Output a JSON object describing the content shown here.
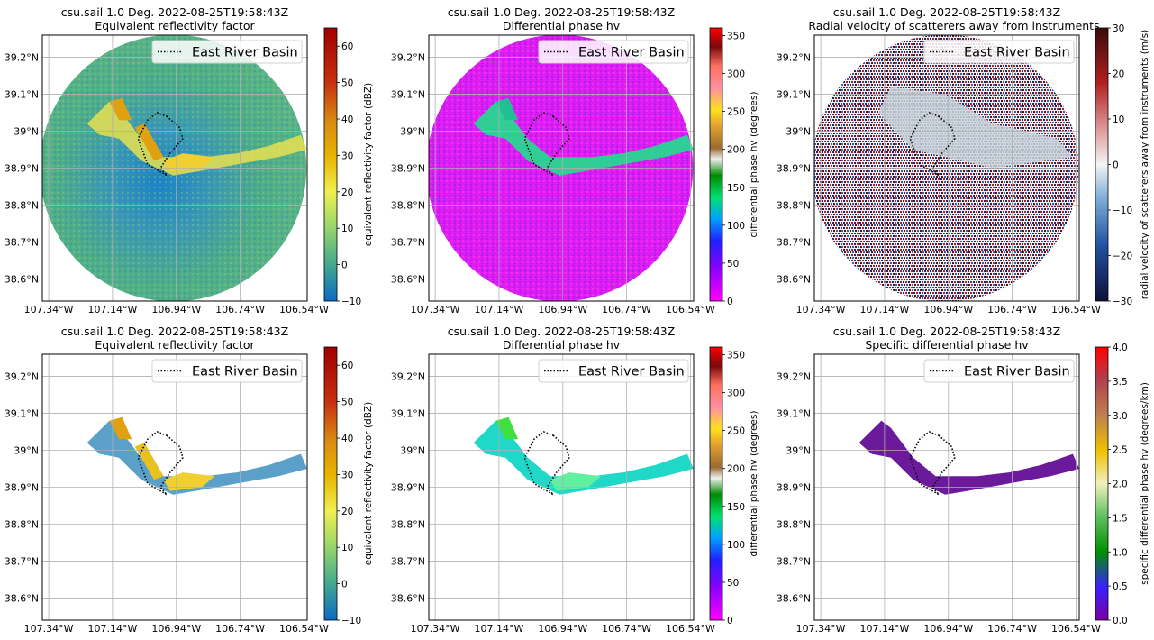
{
  "figure": {
    "x_ticks": [
      "107.34°W",
      "107.14°W",
      "106.94°W",
      "106.74°W",
      "106.54°W"
    ],
    "y_ticks": [
      "39.2°N",
      "39.1°N",
      "39°N",
      "38.9°N",
      "38.8°N",
      "38.7°N",
      "38.6°N"
    ],
    "legend_label": "East River Basin",
    "colors": {
      "reflectivity_bg": "#4fae86",
      "reflectivity_center": "#1e86c6",
      "phase_bg": "#e01cf0",
      "phase_echo": "#1fe08c",
      "velocity_bg": "#a8a0a8",
      "kdp_echo": "#6a1a9a"
    }
  },
  "chart_data": [
    {
      "type": "heatmap",
      "title": "csu.sail 1.0 Deg. 2022-08-25T19:58:43Z",
      "subtitle": "Equivalent reflectivity factor",
      "colorbar_label": "equivalent reflectivity factor (dBZ)",
      "colorbar_ticks": [
        -10,
        0,
        10,
        20,
        30,
        40,
        50,
        60
      ],
      "clim": [
        -10,
        65
      ],
      "xlim": [
        -107.36,
        -106.53
      ],
      "ylim": [
        38.54,
        39.26
      ],
      "legend": "upper right",
      "grid": true,
      "filtered": false
    },
    {
      "type": "heatmap",
      "title": "csu.sail 1.0 Deg. 2022-08-25T19:58:43Z",
      "subtitle": "Differential phase hv",
      "colorbar_label": "differential phase hv (degrees)",
      "colorbar_ticks": [
        0,
        50,
        100,
        150,
        200,
        250,
        300,
        350
      ],
      "clim": [
        0,
        360
      ],
      "xlim": [
        -107.36,
        -106.53
      ],
      "ylim": [
        38.54,
        39.26
      ],
      "legend": "upper right",
      "grid": true,
      "filtered": false
    },
    {
      "type": "heatmap",
      "title": "csu.sail 1.0 Deg. 2022-08-25T19:58:43Z",
      "subtitle": "Radial velocity of scatterers away from instruments",
      "colorbar_label": "radial velocity of scatterers away from instruments (m/s)",
      "colorbar_ticks": [
        -30,
        -20,
        -10,
        0,
        10,
        20,
        30
      ],
      "clim": [
        -30,
        30
      ],
      "xlim": [
        -107.36,
        -106.53
      ],
      "ylim": [
        38.54,
        39.26
      ],
      "legend": "upper right",
      "grid": true,
      "filtered": false
    },
    {
      "type": "heatmap",
      "title": "csu.sail 1.0 Deg. 2022-08-25T19:58:43Z",
      "subtitle": "Equivalent reflectivity factor",
      "colorbar_label": "equivalent reflectivity factor (dBZ)",
      "colorbar_ticks": [
        -10,
        0,
        10,
        20,
        30,
        40,
        50,
        60
      ],
      "clim": [
        -10,
        65
      ],
      "xlim": [
        -107.36,
        -106.53
      ],
      "ylim": [
        38.54,
        39.26
      ],
      "legend": "upper right",
      "grid": true,
      "filtered": true
    },
    {
      "type": "heatmap",
      "title": "csu.sail 1.0 Deg. 2022-08-25T19:58:43Z",
      "subtitle": "Differential phase hv",
      "colorbar_label": "differential phase hv (degrees)",
      "colorbar_ticks": [
        0,
        50,
        100,
        150,
        200,
        250,
        300,
        350
      ],
      "clim": [
        0,
        360
      ],
      "xlim": [
        -107.36,
        -106.53
      ],
      "ylim": [
        38.54,
        39.26
      ],
      "legend": "upper right",
      "grid": true,
      "filtered": true
    },
    {
      "type": "heatmap",
      "title": "csu.sail 1.0 Deg. 2022-08-25T19:58:43Z",
      "subtitle": "Specific differential phase hv",
      "colorbar_label": "specific differential phase hv (degrees/km)",
      "colorbar_ticks": [
        "0.0",
        "0.5",
        "1.0",
        "1.5",
        "2.0",
        "2.5",
        "3.0",
        "3.5",
        "4.0"
      ],
      "clim": [
        0,
        4
      ],
      "xlim": [
        -107.36,
        -106.53
      ],
      "ylim": [
        38.54,
        39.26
      ],
      "legend": "upper right",
      "grid": true,
      "filtered": true
    }
  ]
}
